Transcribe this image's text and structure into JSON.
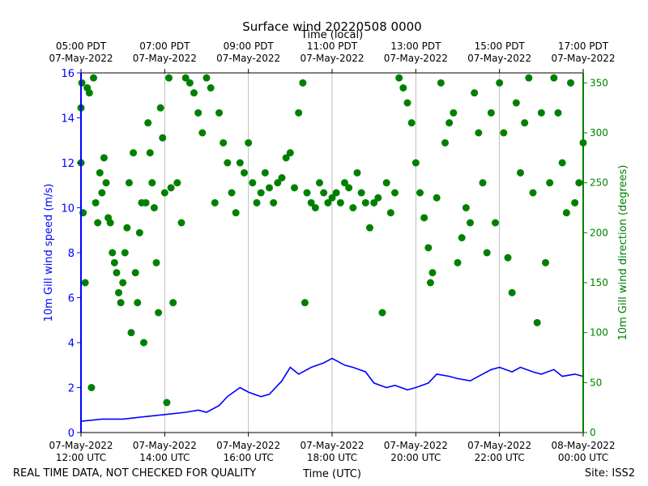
{
  "chart_data": {
    "type": "line+scatter",
    "title": "Surface wind 20220508 0000",
    "top_axis_label": "Time (local)",
    "xlabel": "Time (UTC)",
    "ylabel_left": "10m Gill wind speed (m/s)",
    "ylabel_right": "10m Gill wind direction (degrees)",
    "footer_left": "REAL TIME DATA, NOT CHECKED FOR QUALITY",
    "footer_right": "Site: ISS2",
    "x_range_hours_utc": [
      12,
      24
    ],
    "ylim_left": [
      0,
      16
    ],
    "ylim_right": [
      0,
      360
    ],
    "left_ticks": [
      "0",
      "2",
      "4",
      "6",
      "8",
      "10",
      "12",
      "14",
      "16"
    ],
    "right_ticks": [
      "0",
      "50",
      "100",
      "150",
      "200",
      "250",
      "300",
      "350"
    ],
    "bottom_ticks": [
      {
        "hour": 12,
        "date": "07-May-2022",
        "time": "12:00 UTC"
      },
      {
        "hour": 14,
        "date": "07-May-2022",
        "time": "14:00 UTC"
      },
      {
        "hour": 16,
        "date": "07-May-2022",
        "time": "16:00 UTC"
      },
      {
        "hour": 18,
        "date": "07-May-2022",
        "time": "18:00 UTC"
      },
      {
        "hour": 20,
        "date": "07-May-2022",
        "time": "20:00 UTC"
      },
      {
        "hour": 22,
        "date": "07-May-2022",
        "time": "22:00 UTC"
      },
      {
        "hour": 24,
        "date": "08-May-2022",
        "time": "00:00 UTC"
      }
    ],
    "top_ticks": [
      {
        "hour": 12,
        "time": "05:00 PDT",
        "date": "07-May-2022"
      },
      {
        "hour": 14,
        "time": "07:00 PDT",
        "date": "07-May-2022"
      },
      {
        "hour": 16,
        "time": "09:00 PDT",
        "date": "07-May-2022"
      },
      {
        "hour": 18,
        "time": "11:00 PDT",
        "date": "07-May-2022"
      },
      {
        "hour": 20,
        "time": "13:00 PDT",
        "date": "07-May-2022"
      },
      {
        "hour": 22,
        "time": "15:00 PDT",
        "date": "07-May-2022"
      },
      {
        "hour": 24,
        "time": "17:00 PDT",
        "date": "07-May-2022"
      }
    ],
    "series": [
      {
        "name": "10m Gill wind speed",
        "axis": "left",
        "style": "line",
        "color": "#0000ff",
        "x": [
          12.0,
          12.5,
          13.0,
          13.5,
          14.0,
          14.5,
          14.8,
          15.0,
          15.3,
          15.5,
          15.8,
          16.0,
          16.3,
          16.5,
          16.8,
          17.0,
          17.2,
          17.5,
          17.8,
          18.0,
          18.3,
          18.5,
          18.8,
          19.0,
          19.3,
          19.5,
          19.8,
          20.0,
          20.3,
          20.5,
          20.8,
          21.0,
          21.3,
          21.5,
          21.8,
          22.0,
          22.3,
          22.5,
          22.8,
          23.0,
          23.3,
          23.5,
          23.8,
          24.0
        ],
        "y": [
          0.5,
          0.6,
          0.6,
          0.7,
          0.8,
          0.9,
          1.0,
          0.9,
          1.2,
          1.6,
          2.0,
          1.8,
          1.6,
          1.7,
          2.3,
          2.9,
          2.6,
          2.9,
          3.1,
          3.3,
          3.0,
          2.9,
          2.7,
          2.2,
          2.0,
          2.1,
          1.9,
          2.0,
          2.2,
          2.6,
          2.5,
          2.4,
          2.3,
          2.5,
          2.8,
          2.9,
          2.7,
          2.9,
          2.7,
          2.6,
          2.8,
          2.5,
          2.6,
          2.5
        ]
      },
      {
        "name": "10m Gill wind direction",
        "axis": "right",
        "style": "scatter",
        "color": "#008000",
        "points": [
          [
            12.0,
            325
          ],
          [
            12.0,
            270
          ],
          [
            12.02,
            350
          ],
          [
            12.05,
            220
          ],
          [
            12.1,
            150
          ],
          [
            12.15,
            345
          ],
          [
            12.2,
            340
          ],
          [
            12.25,
            45
          ],
          [
            12.3,
            355
          ],
          [
            12.35,
            230
          ],
          [
            12.4,
            210
          ],
          [
            12.45,
            260
          ],
          [
            12.5,
            240
          ],
          [
            12.55,
            275
          ],
          [
            12.6,
            250
          ],
          [
            12.65,
            215
          ],
          [
            12.7,
            210
          ],
          [
            12.75,
            180
          ],
          [
            12.8,
            170
          ],
          [
            12.85,
            160
          ],
          [
            12.9,
            140
          ],
          [
            12.95,
            130
          ],
          [
            13.0,
            150
          ],
          [
            13.05,
            180
          ],
          [
            13.1,
            205
          ],
          [
            13.15,
            250
          ],
          [
            13.2,
            100
          ],
          [
            13.25,
            280
          ],
          [
            13.3,
            160
          ],
          [
            13.35,
            130
          ],
          [
            13.4,
            200
          ],
          [
            13.45,
            230
          ],
          [
            13.5,
            90
          ],
          [
            13.55,
            230
          ],
          [
            13.6,
            310
          ],
          [
            13.65,
            280
          ],
          [
            13.7,
            250
          ],
          [
            13.75,
            225
          ],
          [
            13.8,
            170
          ],
          [
            13.85,
            120
          ],
          [
            13.9,
            325
          ],
          [
            13.95,
            295
          ],
          [
            14.0,
            240
          ],
          [
            14.05,
            30
          ],
          [
            14.1,
            355
          ],
          [
            14.15,
            245
          ],
          [
            14.2,
            130
          ],
          [
            14.3,
            250
          ],
          [
            14.4,
            210
          ],
          [
            14.5,
            355
          ],
          [
            14.6,
            350
          ],
          [
            14.7,
            340
          ],
          [
            14.8,
            320
          ],
          [
            14.9,
            300
          ],
          [
            15.0,
            355
          ],
          [
            15.1,
            345
          ],
          [
            15.2,
            230
          ],
          [
            15.3,
            320
          ],
          [
            15.4,
            290
          ],
          [
            15.5,
            270
          ],
          [
            15.6,
            240
          ],
          [
            15.7,
            220
          ],
          [
            15.8,
            270
          ],
          [
            15.9,
            260
          ],
          [
            16.0,
            290
          ],
          [
            16.1,
            250
          ],
          [
            16.2,
            230
          ],
          [
            16.3,
            240
          ],
          [
            16.4,
            260
          ],
          [
            16.5,
            245
          ],
          [
            16.6,
            230
          ],
          [
            16.7,
            250
          ],
          [
            16.8,
            255
          ],
          [
            16.9,
            275
          ],
          [
            17.0,
            280
          ],
          [
            17.1,
            245
          ],
          [
            17.2,
            320
          ],
          [
            17.3,
            350
          ],
          [
            17.35,
            130
          ],
          [
            17.4,
            240
          ],
          [
            17.5,
            230
          ],
          [
            17.6,
            225
          ],
          [
            17.7,
            250
          ],
          [
            17.8,
            240
          ],
          [
            17.9,
            230
          ],
          [
            18.0,
            235
          ],
          [
            18.1,
            240
          ],
          [
            18.2,
            230
          ],
          [
            18.3,
            250
          ],
          [
            18.4,
            245
          ],
          [
            18.5,
            225
          ],
          [
            18.6,
            260
          ],
          [
            18.7,
            240
          ],
          [
            18.8,
            230
          ],
          [
            18.9,
            205
          ],
          [
            19.0,
            230
          ],
          [
            19.1,
            235
          ],
          [
            19.2,
            120
          ],
          [
            19.3,
            250
          ],
          [
            19.4,
            220
          ],
          [
            19.5,
            240
          ],
          [
            19.6,
            355
          ],
          [
            19.7,
            345
          ],
          [
            19.8,
            330
          ],
          [
            19.9,
            310
          ],
          [
            20.0,
            270
          ],
          [
            20.1,
            240
          ],
          [
            20.2,
            215
          ],
          [
            20.3,
            185
          ],
          [
            20.35,
            150
          ],
          [
            20.4,
            160
          ],
          [
            20.5,
            235
          ],
          [
            20.6,
            350
          ],
          [
            20.7,
            290
          ],
          [
            20.8,
            310
          ],
          [
            20.9,
            320
          ],
          [
            21.0,
            170
          ],
          [
            21.1,
            195
          ],
          [
            21.2,
            225
          ],
          [
            21.3,
            210
          ],
          [
            21.4,
            340
          ],
          [
            21.5,
            300
          ],
          [
            21.6,
            250
          ],
          [
            21.7,
            180
          ],
          [
            21.8,
            320
          ],
          [
            21.9,
            210
          ],
          [
            22.0,
            350
          ],
          [
            22.1,
            300
          ],
          [
            22.2,
            175
          ],
          [
            22.3,
            140
          ],
          [
            22.4,
            330
          ],
          [
            22.5,
            260
          ],
          [
            22.6,
            310
          ],
          [
            22.7,
            355
          ],
          [
            22.8,
            240
          ],
          [
            22.9,
            110
          ],
          [
            23.0,
            320
          ],
          [
            23.1,
            170
          ],
          [
            23.2,
            250
          ],
          [
            23.3,
            355
          ],
          [
            23.4,
            320
          ],
          [
            23.5,
            270
          ],
          [
            23.6,
            220
          ],
          [
            23.7,
            350
          ],
          [
            23.8,
            230
          ],
          [
            23.9,
            250
          ],
          [
            24.0,
            290
          ]
        ]
      }
    ]
  }
}
